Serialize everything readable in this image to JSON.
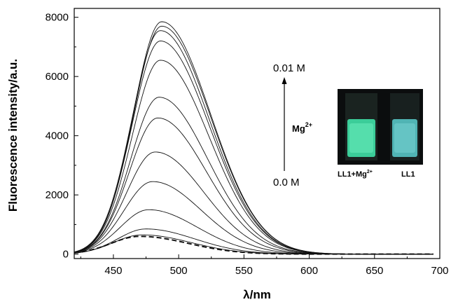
{
  "chart_data": {
    "type": "line",
    "title": "",
    "xlabel": "λ/nm",
    "ylabel": "Fluorescence intensity/a.u.",
    "xlim": [
      420,
      700
    ],
    "ylim": [
      -150,
      8300
    ],
    "xticks": [
      450,
      500,
      550,
      600,
      650,
      700
    ],
    "yticks": [
      0,
      2000,
      4000,
      6000,
      8000
    ],
    "grid": false,
    "series_shape": {
      "peak_x": [
        470,
        472,
        475,
        477,
        480,
        482,
        484,
        485,
        486,
        486,
        486,
        487,
        487
      ],
      "rise_width_nm": 28,
      "fall_width_nm": 48
    },
    "series": [
      {
        "style": "dashed",
        "values_peak": 600
      },
      {
        "values_peak": 650
      },
      {
        "values_peak": 850
      },
      {
        "values_peak": 1500
      },
      {
        "values_peak": 2450
      },
      {
        "values_peak": 3450
      },
      {
        "values_peak": 4600
      },
      {
        "values_peak": 5300
      },
      {
        "values_peak": 6550
      },
      {
        "values_peak": 7200
      },
      {
        "values_peak": 7550
      },
      {
        "values_peak": 7700
      },
      {
        "values_peak": 7850
      }
    ],
    "annotations": {
      "top_conc": "0.01 M",
      "bottom_conc": "0.0 M",
      "ion_base": "Mg",
      "ion_charge": "2+"
    },
    "inset": {
      "label_left": "LL1+Mg",
      "label_left_charge": "2+",
      "label_right": "LL1",
      "vial_left_color": "#3fe0a6",
      "vial_right_color": "#57c4c4",
      "background": "#0b0d0e"
    }
  }
}
